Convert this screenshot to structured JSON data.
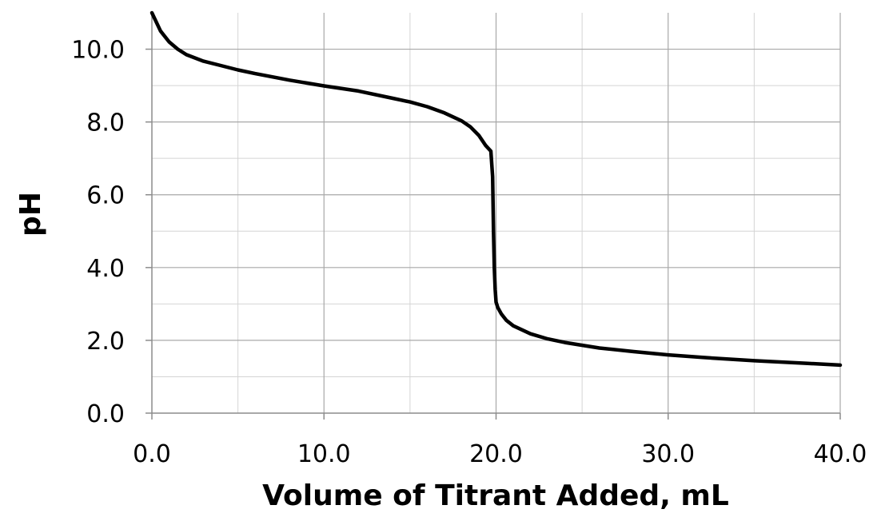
{
  "chart_data": {
    "type": "line",
    "title": "",
    "xlabel": "Volume of Titrant Added, mL",
    "ylabel": "pH",
    "xlim": [
      0,
      40
    ],
    "ylim": [
      0,
      11
    ],
    "x_major_ticks": [
      0,
      10,
      20,
      30,
      40
    ],
    "x_tick_labels": [
      "0.0",
      "10.0",
      "20.0",
      "30.0",
      "40.0"
    ],
    "x_minor_ticks": [
      5,
      15,
      25,
      35
    ],
    "y_major_ticks": [
      0,
      2,
      4,
      6,
      8,
      10
    ],
    "y_tick_labels": [
      "0.0",
      "2.0",
      "4.0",
      "6.0",
      "8.0",
      "10.0"
    ],
    "y_minor_ticks": [
      1,
      3,
      5,
      7,
      9
    ],
    "grid": true,
    "legend": "none",
    "series": [
      {
        "color": "#000000",
        "x": [
          0,
          0.5,
          1,
          1.5,
          2,
          3,
          4,
          5,
          6,
          8,
          10,
          12,
          14,
          15,
          16,
          17,
          18,
          18.5,
          19,
          19.4,
          19.7,
          19.8,
          19.85,
          19.9,
          19.95,
          20.0,
          20.1,
          20.3,
          20.6,
          21,
          22,
          23,
          24,
          26,
          28,
          30,
          32,
          35,
          38,
          40
        ],
        "y": [
          11.0,
          10.5,
          10.2,
          10.0,
          9.85,
          9.67,
          9.55,
          9.43,
          9.33,
          9.15,
          8.99,
          8.85,
          8.65,
          8.55,
          8.42,
          8.25,
          8.03,
          7.87,
          7.63,
          7.35,
          7.2,
          6.5,
          5.0,
          4.0,
          3.4,
          3.05,
          2.9,
          2.73,
          2.55,
          2.4,
          2.18,
          2.04,
          1.94,
          1.79,
          1.69,
          1.6,
          1.53,
          1.44,
          1.37,
          1.32
        ]
      }
    ]
  }
}
